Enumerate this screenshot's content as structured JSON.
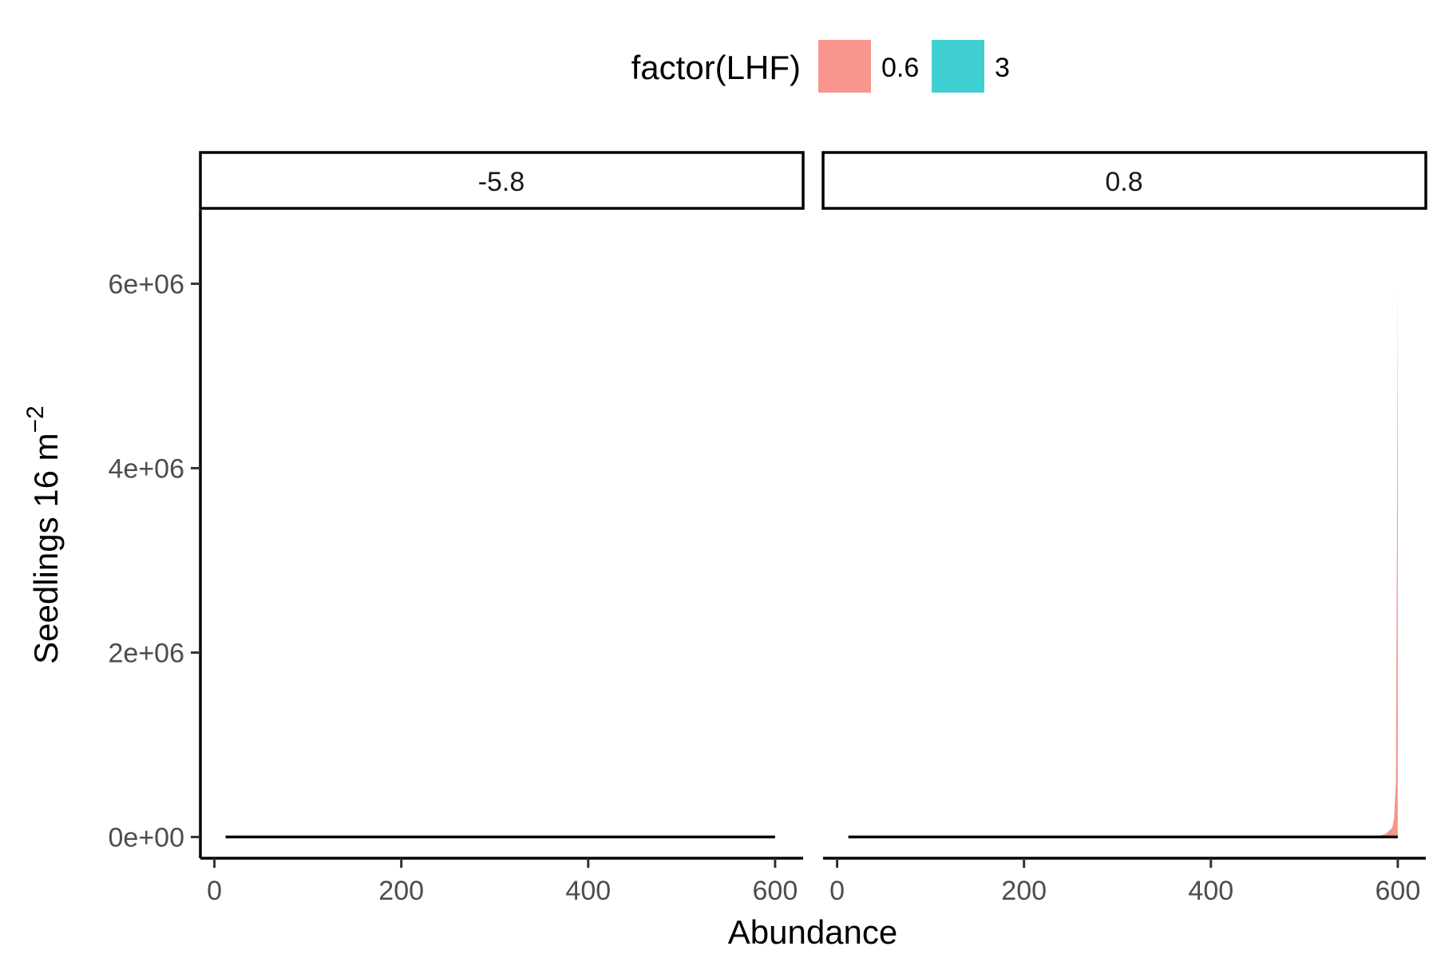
{
  "chart_data": {
    "type": "area",
    "xlabel": "Abundance",
    "ylabel_main": "Seedlings 16 m",
    "ylabel_sup": "−2",
    "xlim": [
      -15,
      630
    ],
    "ylim": [
      -230000,
      6800000
    ],
    "x_ticks": [
      0,
      200,
      400,
      600
    ],
    "x_tick_labels": [
      "0",
      "200",
      "400",
      "600"
    ],
    "y_ticks": [
      0,
      2000000,
      4000000,
      6000000
    ],
    "y_tick_labels": [
      "0e+00",
      "2e+06",
      "4e+06",
      "6e+06"
    ],
    "grid": false,
    "legend": {
      "title": "factor(LHF)",
      "position": "top",
      "items": [
        {
          "label": "0.6",
          "color": "#F8958D"
        },
        {
          "label": "3",
          "color": "#40D0D2"
        }
      ]
    },
    "facets": [
      {
        "label": "-5.8",
        "series": [
          {
            "color": "#000000",
            "kind": "line",
            "x": [
              12,
              600
            ],
            "y": [
              0,
              0
            ]
          }
        ]
      },
      {
        "label": "0.8",
        "series": [
          {
            "color": "#F8958D",
            "kind": "area",
            "x": [
              576,
              586,
              590,
              594,
              596,
              598,
              599,
              600,
              600
            ],
            "y": [
              0,
              30000,
              60000,
              100000,
              200000,
              600000,
              3000000,
              6000000,
              0
            ]
          },
          {
            "color": "#000000",
            "kind": "line",
            "x": [
              12,
              600
            ],
            "y": [
              0,
              0
            ]
          }
        ]
      }
    ]
  }
}
